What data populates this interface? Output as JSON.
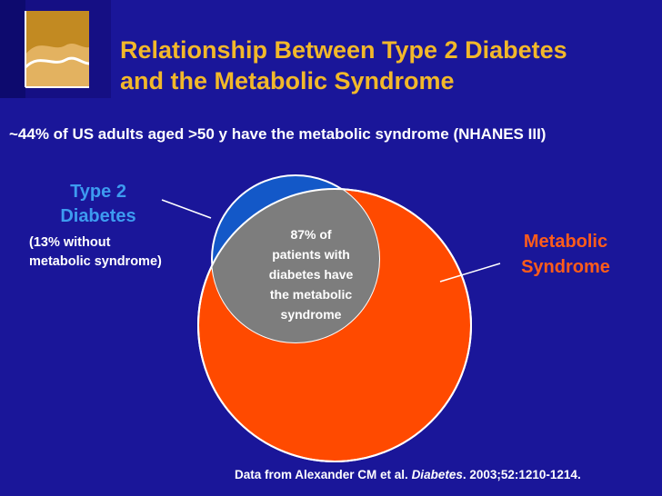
{
  "title": {
    "line1": "Relationship Between Type 2 Diabetes",
    "line2": "and the Metabolic Syndrome"
  },
  "subtitle": "~44% of US adults aged >50 y have the metabolic syndrome (NHANES III)",
  "labels": {
    "type2_line1": "Type 2",
    "type2_line2": "Diabetes",
    "type2_note_line1": "(13% without",
    "type2_note_line2": "metabolic syndrome)",
    "ms_line1": "Metabolic",
    "ms_line2": "Syndrome",
    "overlap_lines": [
      "87% of",
      "patients with",
      "diabetes have",
      "the metabolic",
      "syndrome"
    ]
  },
  "footnote": {
    "prefix": "Data from Alexander CM et al. ",
    "journal": "Diabetes",
    "suffix": ". 2003;52:1210-1214."
  },
  "colors": {
    "background": "#1a1699",
    "title": "#f2b82a",
    "metabolic_syndrome": "#ff4a00",
    "type2_diabetes": "#1358c8",
    "overlap": "#7d7d7d",
    "type2_label": "#3d9bf0",
    "ms_label": "#ff5c1a"
  }
}
